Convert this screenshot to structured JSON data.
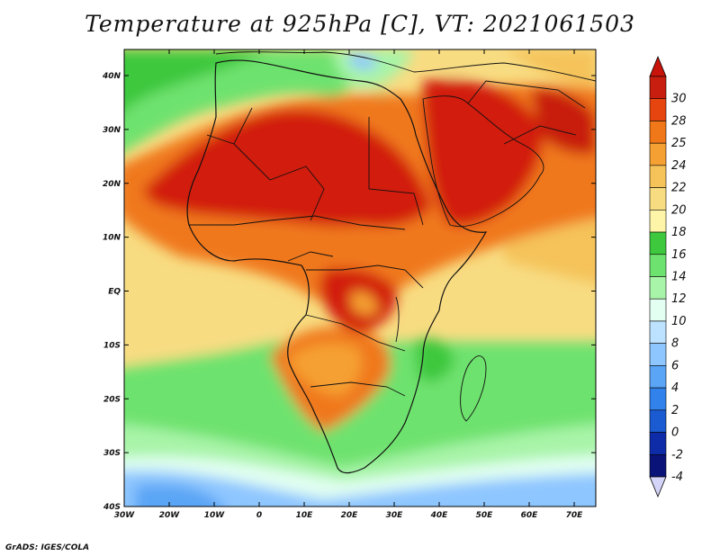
{
  "title": "Temperature at 925hPa [C], VT: 2021061503",
  "credit": "GrADS: IGES/COLA",
  "axes": {
    "lat_labels": [
      "40N",
      "30N",
      "20N",
      "10N",
      "EQ",
      "10S",
      "20S",
      "30S",
      "40S"
    ],
    "lon_labels": [
      "30W",
      "20W",
      "10W",
      "0",
      "10E",
      "20E",
      "30E",
      "40E",
      "50E",
      "60E",
      "70E"
    ]
  },
  "colorbar": {
    "levels": [
      "30",
      "28",
      "25",
      "24",
      "22",
      "20",
      "18",
      "16",
      "14",
      "12",
      "10",
      "8",
      "6",
      "4",
      "2",
      "0",
      "-2",
      "-4"
    ],
    "colors": [
      "#c81e0f",
      "#e6450f",
      "#f07818",
      "#f5a032",
      "#f5c35a",
      "#f8dc82",
      "#fff5a8",
      "#3ec83e",
      "#6ee26e",
      "#a8f4a8",
      "#e2fff2",
      "#bde2ff",
      "#8ec6ff",
      "#5aa5f5",
      "#3282ec",
      "#1a5bd2",
      "#0e2ca8",
      "#0a1478"
    ],
    "top_color": "#c8140a",
    "bottom_color": "#d4d4f8"
  },
  "colors": {
    "hot": "#d21e0f",
    "warm": "#f0781e",
    "mild": "#f8dc82",
    "green": "#3ec83e",
    "light_green": "#8ee28e",
    "cold": "#8ec6ff"
  }
}
